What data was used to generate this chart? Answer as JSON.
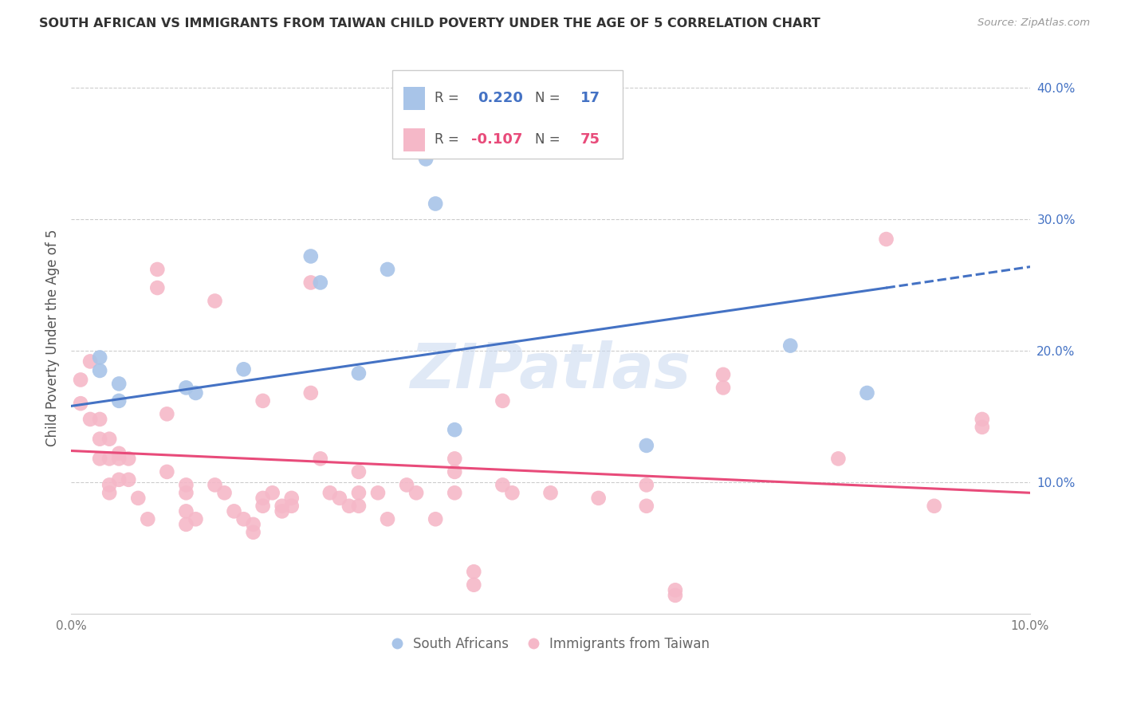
{
  "title": "SOUTH AFRICAN VS IMMIGRANTS FROM TAIWAN CHILD POVERTY UNDER THE AGE OF 5 CORRELATION CHART",
  "source": "Source: ZipAtlas.com",
  "ylabel": "Child Poverty Under the Age of 5",
  "legend_label_blue": "South Africans",
  "legend_label_pink": "Immigrants from Taiwan",
  "xlim": [
    0.0,
    0.1
  ],
  "ylim": [
    0.0,
    0.42
  ],
  "yticks": [
    0.1,
    0.2,
    0.3,
    0.4
  ],
  "ytick_labels": [
    "10.0%",
    "20.0%",
    "30.0%",
    "40.0%"
  ],
  "xticks": [
    0.0,
    0.02,
    0.04,
    0.06,
    0.08,
    0.1
  ],
  "xtick_labels": [
    "0.0%",
    "",
    "",
    "",
    "",
    "10.0%"
  ],
  "blue_color": "#A8C4E8",
  "pink_color": "#F5B8C8",
  "blue_line_color": "#4472C4",
  "pink_line_color": "#E84B7A",
  "watermark": "ZIPatlas",
  "blue_line_x0": 0.0,
  "blue_line_y0": 0.158,
  "blue_line_x1": 0.085,
  "blue_line_y1": 0.248,
  "blue_line_dash_x0": 0.085,
  "blue_line_dash_y0": 0.248,
  "blue_line_dash_x1": 0.1,
  "blue_line_dash_y1": 0.264,
  "pink_line_x0": 0.0,
  "pink_line_y0": 0.124,
  "pink_line_x1": 0.1,
  "pink_line_y1": 0.092,
  "blue_points": [
    [
      0.003,
      0.195
    ],
    [
      0.003,
      0.185
    ],
    [
      0.005,
      0.175
    ],
    [
      0.005,
      0.162
    ],
    [
      0.012,
      0.172
    ],
    [
      0.013,
      0.168
    ],
    [
      0.018,
      0.186
    ],
    [
      0.025,
      0.272
    ],
    [
      0.026,
      0.252
    ],
    [
      0.03,
      0.183
    ],
    [
      0.033,
      0.262
    ],
    [
      0.037,
      0.346
    ],
    [
      0.038,
      0.312
    ],
    [
      0.04,
      0.14
    ],
    [
      0.06,
      0.128
    ],
    [
      0.075,
      0.204
    ],
    [
      0.083,
      0.168
    ]
  ],
  "pink_points": [
    [
      0.001,
      0.16
    ],
    [
      0.001,
      0.178
    ],
    [
      0.002,
      0.192
    ],
    [
      0.002,
      0.148
    ],
    [
      0.003,
      0.148
    ],
    [
      0.003,
      0.133
    ],
    [
      0.003,
      0.118
    ],
    [
      0.004,
      0.133
    ],
    [
      0.004,
      0.118
    ],
    [
      0.004,
      0.098
    ],
    [
      0.004,
      0.092
    ],
    [
      0.005,
      0.122
    ],
    [
      0.005,
      0.118
    ],
    [
      0.005,
      0.102
    ],
    [
      0.006,
      0.118
    ],
    [
      0.006,
      0.102
    ],
    [
      0.007,
      0.088
    ],
    [
      0.008,
      0.072
    ],
    [
      0.009,
      0.262
    ],
    [
      0.009,
      0.248
    ],
    [
      0.01,
      0.108
    ],
    [
      0.01,
      0.152
    ],
    [
      0.012,
      0.098
    ],
    [
      0.012,
      0.092
    ],
    [
      0.012,
      0.078
    ],
    [
      0.012,
      0.068
    ],
    [
      0.013,
      0.072
    ],
    [
      0.015,
      0.238
    ],
    [
      0.015,
      0.098
    ],
    [
      0.016,
      0.092
    ],
    [
      0.017,
      0.078
    ],
    [
      0.018,
      0.072
    ],
    [
      0.019,
      0.068
    ],
    [
      0.019,
      0.062
    ],
    [
      0.02,
      0.162
    ],
    [
      0.02,
      0.088
    ],
    [
      0.02,
      0.082
    ],
    [
      0.021,
      0.092
    ],
    [
      0.022,
      0.082
    ],
    [
      0.022,
      0.078
    ],
    [
      0.023,
      0.088
    ],
    [
      0.023,
      0.082
    ],
    [
      0.025,
      0.252
    ],
    [
      0.025,
      0.168
    ],
    [
      0.026,
      0.118
    ],
    [
      0.027,
      0.092
    ],
    [
      0.028,
      0.088
    ],
    [
      0.029,
      0.082
    ],
    [
      0.03,
      0.108
    ],
    [
      0.03,
      0.092
    ],
    [
      0.03,
      0.082
    ],
    [
      0.032,
      0.092
    ],
    [
      0.033,
      0.072
    ],
    [
      0.035,
      0.098
    ],
    [
      0.036,
      0.092
    ],
    [
      0.038,
      0.072
    ],
    [
      0.04,
      0.118
    ],
    [
      0.04,
      0.108
    ],
    [
      0.04,
      0.092
    ],
    [
      0.042,
      0.032
    ],
    [
      0.042,
      0.022
    ],
    [
      0.045,
      0.162
    ],
    [
      0.045,
      0.098
    ],
    [
      0.046,
      0.092
    ],
    [
      0.05,
      0.092
    ],
    [
      0.055,
      0.088
    ],
    [
      0.06,
      0.082
    ],
    [
      0.06,
      0.098
    ],
    [
      0.063,
      0.018
    ],
    [
      0.063,
      0.014
    ],
    [
      0.068,
      0.182
    ],
    [
      0.068,
      0.172
    ],
    [
      0.08,
      0.118
    ],
    [
      0.085,
      0.285
    ],
    [
      0.09,
      0.082
    ],
    [
      0.095,
      0.148
    ],
    [
      0.095,
      0.142
    ]
  ]
}
